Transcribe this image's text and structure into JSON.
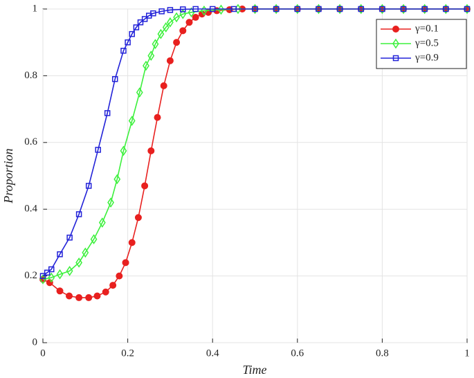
{
  "chart_data": {
    "type": "line",
    "xlabel": "Time",
    "ylabel": "Proportion",
    "xlim": [
      0,
      1
    ],
    "ylim": [
      0,
      1
    ],
    "xticks": [
      0,
      0.2,
      0.4,
      0.6,
      0.8,
      1
    ],
    "yticks": [
      0,
      0.2,
      0.4,
      0.6,
      0.8,
      1
    ],
    "grid": true,
    "legend": "upper right",
    "series": [
      {
        "name": "γ=0.1",
        "color": "#e8201f",
        "marker": "circle",
        "x": [
          0,
          0.016,
          0.04,
          0.062,
          0.085,
          0.108,
          0.128,
          0.148,
          0.165,
          0.18,
          0.195,
          0.21,
          0.225,
          0.24,
          0.255,
          0.27,
          0.285,
          0.3,
          0.315,
          0.33,
          0.345,
          0.36,
          0.375,
          0.39,
          0.41,
          0.44,
          0.47,
          0.5,
          0.55,
          0.6,
          0.65,
          0.7,
          0.75,
          0.8,
          0.85,
          0.9,
          0.95,
          1
        ],
        "values": [
          0.19,
          0.18,
          0.155,
          0.14,
          0.135,
          0.135,
          0.14,
          0.152,
          0.172,
          0.2,
          0.24,
          0.3,
          0.375,
          0.47,
          0.575,
          0.675,
          0.77,
          0.845,
          0.9,
          0.935,
          0.96,
          0.975,
          0.985,
          0.99,
          0.995,
          0.998,
          1,
          1,
          1,
          1,
          1,
          1,
          1,
          1,
          1,
          1,
          1,
          1
        ]
      },
      {
        "name": "γ=0.5",
        "color": "#3cf03c",
        "marker": "diamond",
        "x": [
          0,
          0.02,
          0.04,
          0.063,
          0.085,
          0.1,
          0.12,
          0.14,
          0.16,
          0.175,
          0.19,
          0.21,
          0.228,
          0.243,
          0.255,
          0.265,
          0.278,
          0.29,
          0.3,
          0.315,
          0.33,
          0.35,
          0.38,
          0.42,
          0.46,
          0.5,
          0.55,
          0.6,
          0.65,
          0.7,
          0.75,
          0.8,
          0.85,
          0.9,
          0.95,
          1
        ],
        "values": [
          0.19,
          0.195,
          0.205,
          0.215,
          0.24,
          0.27,
          0.31,
          0.36,
          0.42,
          0.49,
          0.575,
          0.665,
          0.75,
          0.83,
          0.86,
          0.895,
          0.925,
          0.945,
          0.96,
          0.975,
          0.985,
          0.99,
          0.995,
          0.998,
          1,
          1,
          1,
          1,
          1,
          1,
          1,
          1,
          1,
          1,
          1,
          1
        ]
      },
      {
        "name": "γ=0.9",
        "color": "#2222d8",
        "marker": "square",
        "x": [
          0,
          0.01,
          0.02,
          0.04,
          0.063,
          0.085,
          0.108,
          0.13,
          0.152,
          0.17,
          0.19,
          0.2,
          0.21,
          0.22,
          0.23,
          0.24,
          0.25,
          0.26,
          0.28,
          0.3,
          0.33,
          0.36,
          0.4,
          0.45,
          0.5,
          0.55,
          0.6,
          0.65,
          0.7,
          0.75,
          0.8,
          0.85,
          0.9,
          0.95,
          1
        ],
        "values": [
          0.2,
          0.21,
          0.22,
          0.265,
          0.315,
          0.385,
          0.47,
          0.578,
          0.688,
          0.79,
          0.875,
          0.9,
          0.925,
          0.945,
          0.96,
          0.97,
          0.98,
          0.987,
          0.993,
          0.997,
          0.999,
          1,
          1,
          1,
          1,
          1,
          1,
          1,
          1,
          1,
          1,
          1,
          1,
          1,
          1
        ]
      }
    ]
  }
}
